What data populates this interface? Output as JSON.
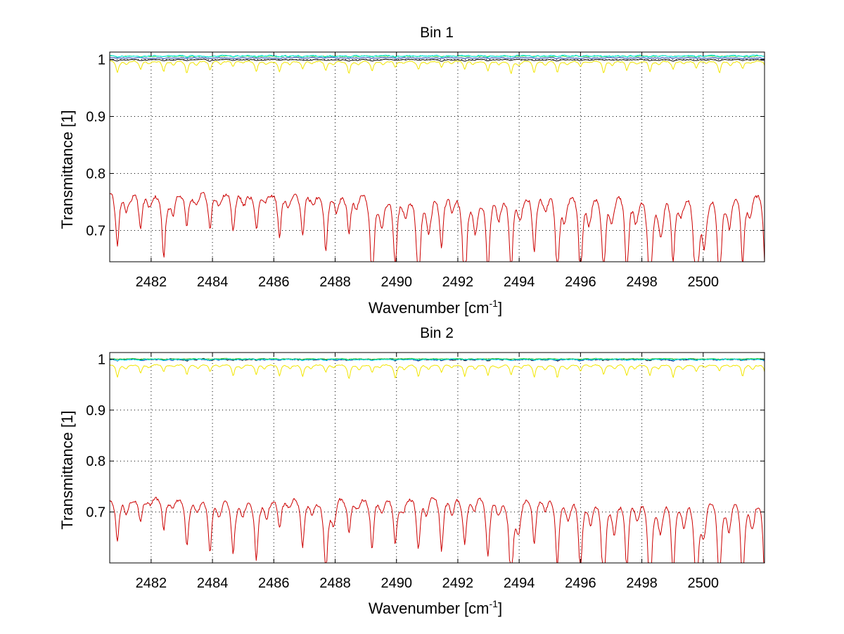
{
  "chart_data": [
    {
      "type": "line",
      "title": "Bin 1",
      "xlabel": "Wavenumber [cm",
      "xlabel_sup": "-1",
      "xlabel_suffix": "]",
      "ylabel": "Transmittance [1]",
      "xlim": [
        2480.65,
        2502.0
      ],
      "ylim": [
        0.645,
        1.013
      ],
      "xticks": [
        2482,
        2484,
        2486,
        2488,
        2490,
        2492,
        2494,
        2496,
        2498,
        2500
      ],
      "xtick_labels": [
        "2482",
        "2484",
        "2486",
        "2488",
        "2490",
        "2492",
        "2494",
        "2496",
        "2498",
        "2500"
      ],
      "yticks": [
        0.7,
        0.8,
        0.9,
        1.0
      ],
      "ytick_labels": [
        "0.7",
        "0.8",
        "0.9",
        "1"
      ],
      "grid": true,
      "lines_start": 2480.65,
      "lines_spacing": 0.755,
      "lines_count": 29,
      "series": [
        {
          "name": "black",
          "color": "#000000",
          "baseline": 1.0,
          "slope": 0.0,
          "depth": 0.002,
          "noise": 0.0012,
          "width": 0.07
        },
        {
          "name": "blue",
          "color": "#1c3faa",
          "baseline": 1.003,
          "slope": 0.0,
          "depth": 0.001,
          "noise": 0.0015,
          "width": 0.07
        },
        {
          "name": "green",
          "color": "#33cc33",
          "baseline": 1.006,
          "slope": 0.0,
          "depth": 0.001,
          "noise": 0.0012,
          "width": 0.07
        },
        {
          "name": "cyan",
          "color": "#00e5ee",
          "baseline": 1.007,
          "slope": 0.0,
          "depth": 0.002,
          "noise": 0.0022,
          "width": 0.07
        },
        {
          "name": "yellow",
          "color": "#f2e600",
          "baseline": 0.998,
          "slope": 0.0,
          "depth": 0.016,
          "noise": 0.002,
          "width": 0.05
        },
        {
          "name": "red",
          "color": "#cc0000",
          "baseline": 0.775,
          "slope": 0.0005,
          "depth": 0.08,
          "depth_growth": 0.0045,
          "noise": 0.009,
          "width": 0.07
        }
      ]
    },
    {
      "type": "line",
      "title": "Bin 2",
      "xlabel": "Wavenumber [cm",
      "xlabel_sup": "-1",
      "xlabel_suffix": "]",
      "ylabel": "Transmittance [1]",
      "xlim": [
        2480.65,
        2502.0
      ],
      "ylim": [
        0.6,
        1.013
      ],
      "xticks": [
        2482,
        2484,
        2486,
        2488,
        2490,
        2492,
        2494,
        2496,
        2498,
        2500
      ],
      "xtick_labels": [
        "2482",
        "2484",
        "2486",
        "2488",
        "2490",
        "2492",
        "2494",
        "2496",
        "2498",
        "2500"
      ],
      "yticks": [
        0.7,
        0.8,
        0.9,
        1.0
      ],
      "ytick_labels": [
        "0.7",
        "0.8",
        "0.9",
        "1"
      ],
      "grid": true,
      "lines_start": 2480.65,
      "lines_spacing": 0.755,
      "lines_count": 29,
      "series": [
        {
          "name": "black",
          "color": "#000000",
          "baseline": 1.0,
          "slope": 0.0,
          "depth": 0.002,
          "noise": 0.0025,
          "width": 0.07
        },
        {
          "name": "blue",
          "color": "#1c3faa",
          "baseline": 1.0,
          "slope": 0.0,
          "depth": 0.002,
          "noise": 0.0025,
          "width": 0.07
        },
        {
          "name": "green",
          "color": "#33cc33",
          "baseline": 1.001,
          "slope": 0.0,
          "depth": 0.001,
          "noise": 0.0012,
          "width": 0.07
        },
        {
          "name": "cyan",
          "color": "#00e5ee",
          "baseline": 1.0,
          "slope": 0.0,
          "depth": 0.002,
          "noise": 0.0015,
          "width": 0.07
        },
        {
          "name": "yellow",
          "color": "#f2e600",
          "baseline": 0.99,
          "slope": 0.0,
          "depth": 0.02,
          "noise": 0.002,
          "width": 0.05
        },
        {
          "name": "red",
          "color": "#cc0000",
          "baseline": 0.735,
          "slope": 0.0008,
          "depth": 0.07,
          "depth_growth": 0.0045,
          "noise": 0.008,
          "width": 0.07
        }
      ]
    }
  ]
}
